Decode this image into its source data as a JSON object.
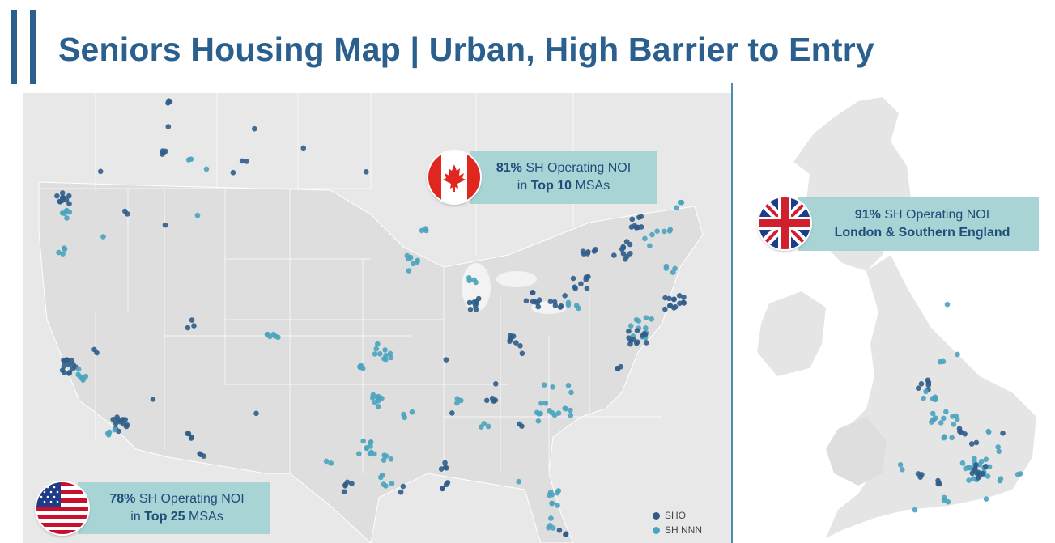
{
  "title": "Seniors Housing Map | Urban, High Barrier to Entry",
  "colors": {
    "brand": "#2b5f8e",
    "callout_bg": "#a8d4d6",
    "sho": "#2f5d8a",
    "sh_nnn": "#4aa3bf",
    "land": "#e5e5e5"
  },
  "callouts": {
    "canada": {
      "pct": "81%",
      "text1": " SH Operating NOI",
      "text2a": "in ",
      "text2b": "Top 10",
      "text2c": " MSAs"
    },
    "uk": {
      "pct": "91%",
      "text1": " SH Operating NOI",
      "line2": "London & Southern England"
    },
    "us": {
      "pct": "78%",
      "text1": " SH Operating NOI",
      "text2a": "in ",
      "text2b": "Top 25",
      "text2c": " MSAs"
    }
  },
  "flags": {
    "canada": "canada-flag-icon",
    "uk": "uk-flag-icon",
    "us": "us-flag-icon"
  },
  "legend": {
    "sho": "SHO",
    "sh_nnn": "SH NNN"
  }
}
